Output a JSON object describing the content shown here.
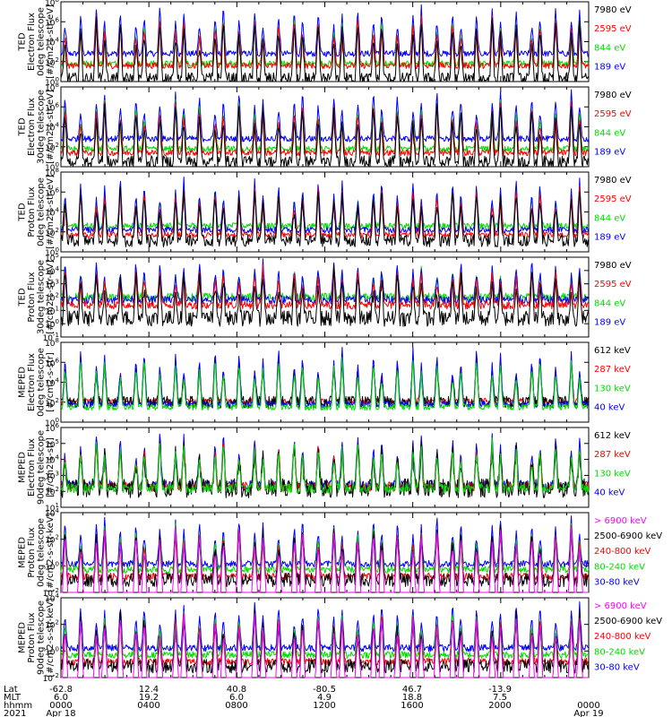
{
  "colors": {
    "blue": "#0000ff",
    "red": "#ff0000",
    "green": "#00dd00",
    "black": "#000000",
    "magenta": "#ff00ff"
  },
  "footer": {
    "rows": [
      {
        "name": "Lat",
        "values": [
          "-62.8",
          "12.4",
          "40.8",
          "-80.5",
          "46.7",
          "-13.9"
        ]
      },
      {
        "name": "MLT",
        "values": [
          "6.0",
          "19.2",
          "6.0",
          "4.9",
          "18.8",
          "7.5"
        ]
      },
      {
        "name": "hhmm",
        "values": [
          "0000",
          "0400",
          "0800",
          "1200",
          "1600",
          "2000",
          "0000"
        ]
      }
    ],
    "year": "2021",
    "start_date": "Apr 18",
    "end_date": "Apr 19"
  },
  "chart_data": [
    {
      "type": "line",
      "ylabel": [
        "TED",
        "Electron Flux",
        "0deg telescope",
        "[#/cm2-s-str-eV]"
      ],
      "y_ticks": [
        "10^8",
        "10^6",
        "10^4",
        "10^2",
        "10^0"
      ],
      "ylim_exp": [
        0,
        8
      ],
      "log_y": true,
      "series": [
        {
          "name": "7980 eV",
          "color": "black",
          "base": 0.3
        },
        {
          "name": "2595 eV",
          "color": "red",
          "base": 1.6
        },
        {
          "name": "844 eV",
          "color": "green",
          "base": 1.8
        },
        {
          "name": "189 eV",
          "color": "blue",
          "base": 2.8
        }
      ]
    },
    {
      "type": "line",
      "ylabel": [
        "TED",
        "Electron Flux",
        "30deg telescope",
        "[#/cm2-s-str-eV]"
      ],
      "y_ticks": [
        "10^8",
        "10^6",
        "10^4",
        "10^2",
        "10^0"
      ],
      "ylim_exp": [
        0,
        8
      ],
      "log_y": true,
      "series": [
        {
          "name": "7980 eV",
          "color": "black",
          "base": 0.5
        },
        {
          "name": "2595 eV",
          "color": "red",
          "base": 1.4
        },
        {
          "name": "844 eV",
          "color": "green",
          "base": 1.8
        },
        {
          "name": "189 eV",
          "color": "blue",
          "base": 2.8
        }
      ]
    },
    {
      "type": "line",
      "ylabel": [
        "TED",
        "Proton Flux",
        "0deg telescope",
        "[#/cm2-s-str-eV]"
      ],
      "y_ticks": [
        "10^8",
        "10^6",
        "10^4",
        "10^2",
        "10^0"
      ],
      "ylim_exp": [
        0,
        8
      ],
      "log_y": true,
      "series": [
        {
          "name": "7980 eV",
          "color": "black",
          "base": 1.1
        },
        {
          "name": "2595 eV",
          "color": "red",
          "base": 1.7
        },
        {
          "name": "844 eV",
          "color": "green",
          "base": 2.6
        },
        {
          "name": "189 eV",
          "color": "blue",
          "base": 2.2
        }
      ]
    },
    {
      "type": "line",
      "ylabel": [
        "TED",
        "Proton Flux",
        "30deg telescope",
        "[#/cm2-s-str-eV]"
      ],
      "y_ticks": [
        "10^5",
        "10^4",
        "10^3",
        "10^2",
        "10^1",
        "10^0",
        "10^-1"
      ],
      "ylim_exp": [
        -1,
        5
      ],
      "log_y": true,
      "series": [
        {
          "name": "7980 eV",
          "color": "black",
          "base": 0.4
        },
        {
          "name": "2595 eV",
          "color": "red",
          "base": 1.4
        },
        {
          "name": "844 eV",
          "color": "green",
          "base": 2.0
        },
        {
          "name": "189 eV",
          "color": "blue",
          "base": 1.8
        }
      ]
    },
    {
      "type": "line",
      "ylabel": [
        "MEPED",
        "Electron Flux",
        "0deg telescope",
        "[#/cm2-s-str]"
      ],
      "y_ticks": [
        "10^8",
        "10^6",
        "10^4",
        "10^2",
        "10^0"
      ],
      "ylim_exp": [
        0,
        8
      ],
      "log_y": true,
      "series": [
        {
          "name": "612 keV",
          "color": "black",
          "base": 2.0
        },
        {
          "name": "287 keV",
          "color": "red",
          "base": 2.1
        },
        {
          "name": "130 keV",
          "color": "green",
          "base": 1.5
        },
        {
          "name": "40 keV",
          "color": "blue",
          "base": 1.8
        }
      ]
    },
    {
      "type": "line",
      "ylabel": [
        "MEPED",
        "Electron Flux",
        "90deg telescope",
        "[#/cm2-s-str]"
      ],
      "y_ticks": [
        "10^6",
        "10^5",
        "10^4",
        "10^3",
        "10^2",
        "10^1"
      ],
      "ylim_exp": [
        1,
        6
      ],
      "log_y": true,
      "series": [
        {
          "name": "612 keV",
          "color": "black",
          "base": 2.2
        },
        {
          "name": "287 keV",
          "color": "red",
          "base": 2.3
        },
        {
          "name": "130 keV",
          "color": "green",
          "base": 2.2
        },
        {
          "name": "40 keV",
          "color": "blue",
          "base": 2.4
        }
      ]
    },
    {
      "type": "line",
      "ylabel": [
        "MEPED",
        "Proton Flux",
        "0deg telescope",
        "[#/cm2-s-str-keV]"
      ],
      "y_ticks": [
        "10^4",
        "10^2",
        "10^0",
        "10^-2"
      ],
      "ylim_exp": [
        -2,
        5
      ],
      "log_y": true,
      "series": [
        {
          "name": "> 6900 keV",
          "color": "magenta",
          "base": -1.2
        },
        {
          "name": "2500-6900 keV",
          "color": "black",
          "base": -0.9
        },
        {
          "name": "240-800 keV",
          "color": "red",
          "base": -0.6
        },
        {
          "name": "80-240 keV",
          "color": "green",
          "base": 0.0
        },
        {
          "name": "30-80 keV",
          "color": "blue",
          "base": 0.5
        }
      ]
    },
    {
      "type": "line",
      "ylabel": [
        "MEPED",
        "Proton Flux",
        "90deg telescope",
        "[#/cm2-s-str-keV]"
      ],
      "y_ticks": [
        "10^4",
        "10^2",
        "10^0",
        "10^-2"
      ],
      "ylim_exp": [
        -2,
        5
      ],
      "log_y": true,
      "series": [
        {
          "name": "> 6900 keV",
          "color": "magenta",
          "base": -1.3
        },
        {
          "name": "2500-6900 keV",
          "color": "black",
          "base": -1.0
        },
        {
          "name": "240-800 keV",
          "color": "red",
          "base": -0.6
        },
        {
          "name": "80-240 keV",
          "color": "green",
          "base": 0.0
        },
        {
          "name": "30-80 keV",
          "color": "blue",
          "base": 0.6
        }
      ]
    }
  ]
}
